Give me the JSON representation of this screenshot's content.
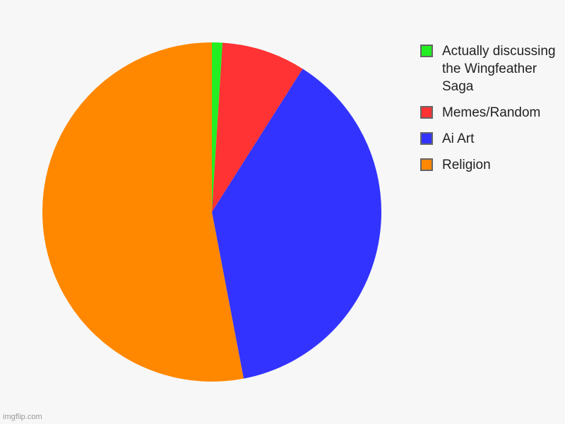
{
  "chart_data": {
    "type": "pie",
    "title": "",
    "start_angle": "top, clockwise",
    "legend_position": "right",
    "slices": [
      {
        "label": "Actually discussing the Wingfeather Saga",
        "value": 1,
        "color": "#22ee22"
      },
      {
        "label": "Memes/Random",
        "value": 8,
        "color": "#ff3333"
      },
      {
        "label": "Ai Art",
        "value": 38,
        "color": "#3333ff"
      },
      {
        "label": "Religion",
        "value": 53,
        "color": "#ff8800"
      }
    ]
  },
  "watermark": "imgflip.com"
}
